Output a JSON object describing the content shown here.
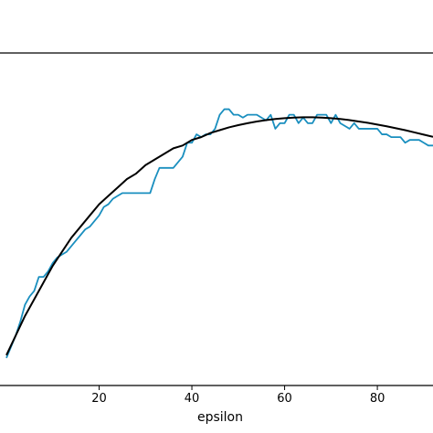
{
  "chart_data": {
    "type": "line",
    "xlabel": "epsilon",
    "ylabel": "",
    "xlim": [
      0,
      92
    ],
    "ylim": [
      0,
      1
    ],
    "xticks": [
      20,
      40,
      60,
      80
    ],
    "grid": false,
    "legend": "none",
    "colors": {
      "measured": "#1a8fbf",
      "fit": "#000000"
    },
    "series": [
      {
        "key": "measured",
        "x": [
          0,
          1,
          2,
          3,
          4,
          5,
          6,
          7,
          8,
          9,
          10,
          11,
          12,
          13,
          14,
          15,
          16,
          17,
          18,
          19,
          20,
          21,
          22,
          23,
          24,
          25,
          26,
          27,
          28,
          29,
          30,
          31,
          32,
          33,
          34,
          35,
          36,
          37,
          38,
          39,
          40,
          41,
          42,
          43,
          44,
          45,
          46,
          47,
          48,
          49,
          50,
          51,
          52,
          53,
          54,
          55,
          56,
          57,
          58,
          59,
          60,
          61,
          62,
          63,
          64,
          65,
          66,
          67,
          68,
          69,
          70,
          71,
          72,
          73,
          74,
          75,
          76,
          77,
          78,
          79,
          80,
          81,
          82,
          83,
          84,
          85,
          86,
          87,
          88,
          89,
          90,
          91,
          92
        ],
        "y": [
          0.02,
          0.06,
          0.1,
          0.15,
          0.21,
          0.24,
          0.26,
          0.31,
          0.31,
          0.33,
          0.36,
          0.38,
          0.39,
          0.4,
          0.42,
          0.44,
          0.46,
          0.48,
          0.49,
          0.51,
          0.53,
          0.56,
          0.57,
          0.59,
          0.6,
          0.61,
          0.61,
          0.61,
          0.61,
          0.61,
          0.61,
          0.61,
          0.66,
          0.7,
          0.7,
          0.7,
          0.7,
          0.72,
          0.74,
          0.79,
          0.79,
          0.82,
          0.81,
          0.82,
          0.82,
          0.84,
          0.89,
          0.91,
          0.91,
          0.89,
          0.89,
          0.88,
          0.89,
          0.89,
          0.89,
          0.88,
          0.87,
          0.89,
          0.84,
          0.86,
          0.86,
          0.89,
          0.89,
          0.86,
          0.88,
          0.86,
          0.86,
          0.89,
          0.89,
          0.89,
          0.86,
          0.89,
          0.86,
          0.85,
          0.84,
          0.86,
          0.84,
          0.84,
          0.84,
          0.84,
          0.84,
          0.82,
          0.82,
          0.81,
          0.81,
          0.81,
          0.79,
          0.8,
          0.8,
          0.8,
          0.79,
          0.78,
          0.78
        ]
      },
      {
        "key": "fit",
        "x": [
          0,
          2,
          4,
          6,
          8,
          10,
          12,
          14,
          16,
          18,
          20,
          22,
          24,
          26,
          28,
          30,
          32,
          34,
          36,
          38,
          40,
          42,
          44,
          46,
          48,
          50,
          52,
          54,
          56,
          58,
          60,
          62,
          64,
          66,
          68,
          70,
          72,
          74,
          76,
          78,
          80,
          82,
          84,
          86,
          88,
          90,
          92
        ],
        "y": [
          0.03,
          0.1,
          0.17,
          0.23,
          0.29,
          0.35,
          0.4,
          0.45,
          0.49,
          0.53,
          0.57,
          0.6,
          0.63,
          0.66,
          0.68,
          0.71,
          0.73,
          0.75,
          0.77,
          0.78,
          0.8,
          0.81,
          0.825,
          0.835,
          0.845,
          0.853,
          0.86,
          0.866,
          0.871,
          0.875,
          0.878,
          0.88,
          0.881,
          0.881,
          0.88,
          0.878,
          0.875,
          0.871,
          0.866,
          0.861,
          0.855,
          0.849,
          0.842,
          0.835,
          0.827,
          0.819,
          0.811
        ]
      }
    ]
  }
}
